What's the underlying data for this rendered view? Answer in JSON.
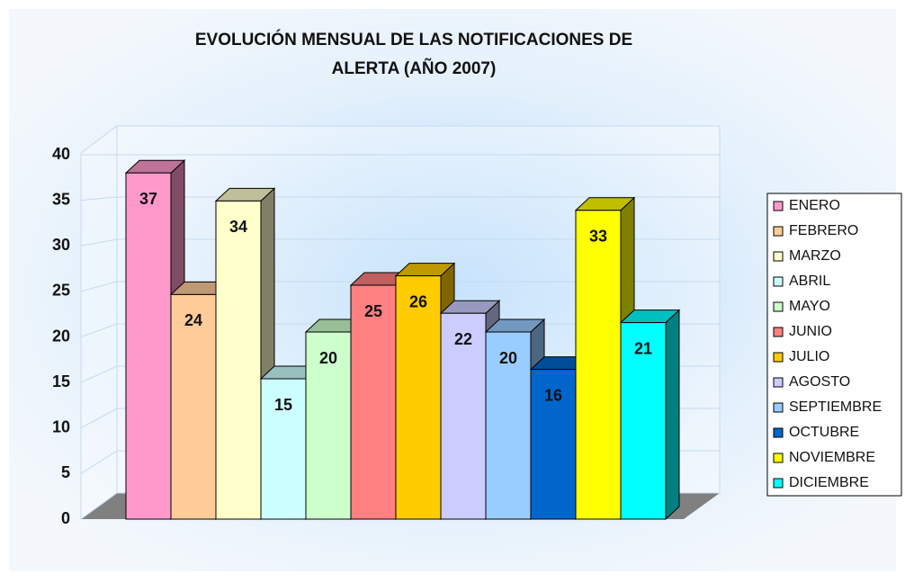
{
  "chart_data": {
    "type": "bar3d",
    "title": [
      "EVOLUCIÓN MENSUAL DE LAS NOTIFICACIONES DE",
      "ALERTA (AÑO 2007)"
    ],
    "categories": [
      "ENERO",
      "FEBRERO",
      "MARZO",
      "ABRIL",
      "MAYO",
      "JUNIO",
      "JULIO",
      "AGOSTO",
      "SEPTIEMBRE",
      "OCTUBRE",
      "NOVIEMBRE",
      "DICIEMBRE"
    ],
    "values": [
      37,
      24,
      34,
      15,
      20,
      25,
      26,
      22,
      20,
      16,
      33,
      21
    ],
    "colors": [
      "#ff99cc",
      "#ffcc99",
      "#ffffcc",
      "#ccffff",
      "#ccffcc",
      "#ff8080",
      "#ffcc00",
      "#ccccff",
      "#99ccff",
      "#0066cc",
      "#ffff00",
      "#00ffff"
    ],
    "ylim": [
      0,
      40
    ],
    "yticks": [
      0,
      5,
      10,
      15,
      20,
      25,
      30,
      35,
      40
    ],
    "grid": true,
    "legend": "right"
  }
}
